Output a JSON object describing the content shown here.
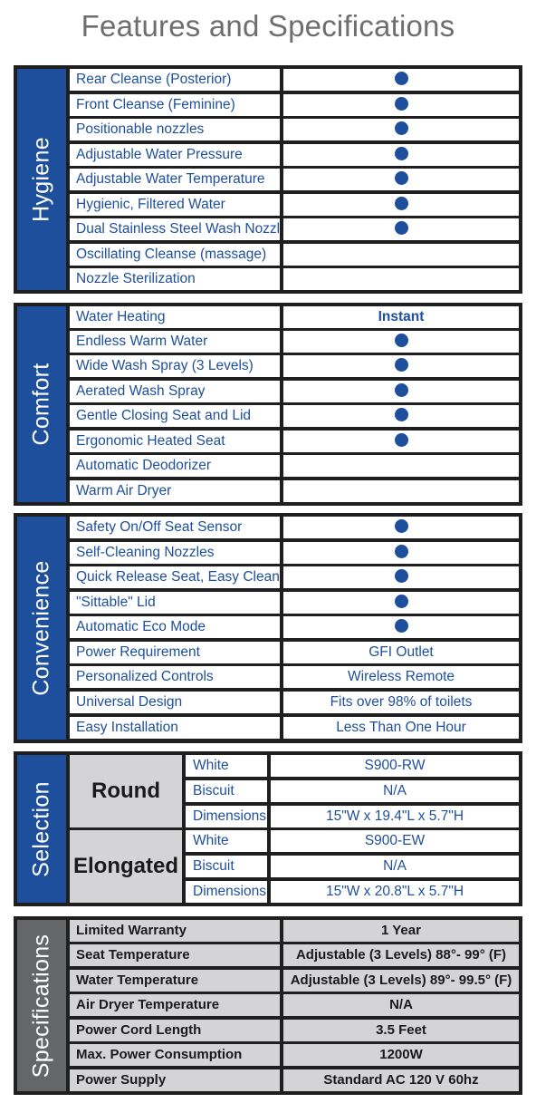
{
  "title": "Features and Specifications",
  "colors": {
    "accent": "#1e4f9c",
    "border": "#1f1f1f",
    "spec_band": "#656668",
    "gray_cell": "#d4d4d6"
  },
  "hygiene": {
    "label": "Hygiene",
    "rows": [
      {
        "feature": "Rear Cleanse (Posterior)",
        "value": ""
      },
      {
        "feature": "Front Cleanse (Feminine)",
        "value": ""
      },
      {
        "feature": "Positionable nozzles",
        "value": ""
      },
      {
        "feature": "Adjustable Water Pressure",
        "value": ""
      },
      {
        "feature": "Adjustable Water Temperature",
        "value": ""
      },
      {
        "feature": "Hygienic, Filtered Water",
        "value": ""
      },
      {
        "feature": "Dual Stainless Steel Wash Nozzles",
        "value": ""
      },
      {
        "feature": "Oscillating Cleanse (massage)",
        "value": ""
      },
      {
        "feature": "Nozzle Sterilization",
        "value": ""
      }
    ]
  },
  "comfort": {
    "label": "Comfort",
    "rows": [
      {
        "feature": "Water Heating",
        "value": "Instant"
      },
      {
        "feature": "Endless Warm Water",
        "value": ""
      },
      {
        "feature": "Wide Wash Spray (3 Levels)",
        "value": ""
      },
      {
        "feature": "Aerated Wash Spray",
        "value": ""
      },
      {
        "feature": "Gentle Closing Seat and Lid",
        "value": ""
      },
      {
        "feature": "Ergonomic Heated Seat",
        "value": ""
      },
      {
        "feature": "Automatic Deodorizer",
        "value": ""
      },
      {
        "feature": "Warm Air Dryer",
        "value": ""
      }
    ]
  },
  "convenience": {
    "label": "Convenience",
    "rows": [
      {
        "feature": "Safety On/Off Seat Sensor",
        "value": ""
      },
      {
        "feature": "Self-Cleaning Nozzles",
        "value": ""
      },
      {
        "feature": "Quick Release Seat, Easy Cleaning",
        "value": ""
      },
      {
        "feature": "\"Sittable\" Lid",
        "value": ""
      },
      {
        "feature": "Automatic Eco Mode",
        "value": ""
      },
      {
        "feature": "Power Requirement",
        "value": "GFI Outlet"
      },
      {
        "feature": "Personalized Controls",
        "value": "Wireless Remote"
      },
      {
        "feature": "Universal Design",
        "value": "Fits over 98% of toilets"
      },
      {
        "feature": "Easy Installation",
        "value": "Less Than One Hour"
      }
    ]
  },
  "selection": {
    "label": "Selection",
    "round": {
      "name": "Round",
      "rows": [
        {
          "feature": "White",
          "value": "S900-RW"
        },
        {
          "feature": "Biscuit",
          "value": "N/A"
        },
        {
          "feature": "Dimensions",
          "value": "15\"W x 19.4\"L x 5.7\"H"
        }
      ]
    },
    "elongated": {
      "name": "Elongated",
      "rows": [
        {
          "feature": "White",
          "value": "S900-EW"
        },
        {
          "feature": "Biscuit",
          "value": "N/A"
        },
        {
          "feature": "Dimensions",
          "value": "15\"W x 20.8\"L x 5.7\"H"
        }
      ]
    }
  },
  "specifications": {
    "label": "Specifications",
    "rows": [
      {
        "feature": "Limited Warranty",
        "value": "1 Year"
      },
      {
        "feature": "Seat Temperature",
        "value": "Adjustable (3 Levels) 88°- 99° (F)"
      },
      {
        "feature": "Water Temperature",
        "value": "Adjustable (3 Levels) 89°- 99.5° (F)"
      },
      {
        "feature": "Air Dryer Temperature",
        "value": "N/A"
      },
      {
        "feature": "Power Cord Length",
        "value": "3.5 Feet"
      },
      {
        "feature": "Max. Power Consumption",
        "value": "1200W"
      },
      {
        "feature": "Power Supply",
        "value": "Standard AC 120 V 60hz"
      }
    ]
  }
}
